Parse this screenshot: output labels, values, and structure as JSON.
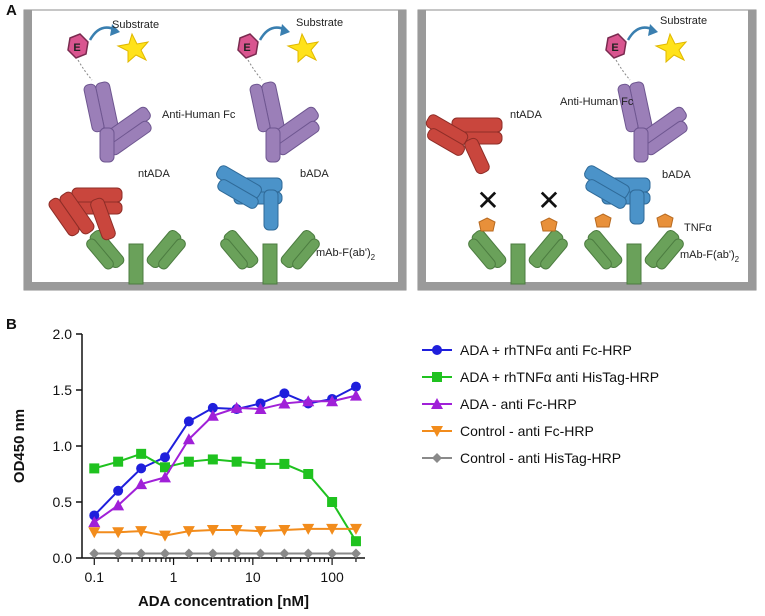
{
  "panels": {
    "a_letter": "A",
    "b_letter": "B"
  },
  "diagram": {
    "left": {
      "substrate_1": "Substrate",
      "substrate_2": "Substrate",
      "enzyme_1": "E",
      "enzyme_2": "E",
      "anti_human_fc": "Anti-Human Fc",
      "ntada": "ntADA",
      "bada": "bADA",
      "mab": "mAb-F(ab')",
      "mab_sub": "2"
    },
    "right": {
      "substrate": "Substrate",
      "enzyme": "E",
      "anti_human_fc": "Anti-Human Fc",
      "ntada": "ntADA",
      "bada": "bADA",
      "tnf": "TNFα",
      "mab": "mAb-F(ab')",
      "mab_sub": "2",
      "block_1": "✕",
      "block_2": "✕"
    },
    "colors": {
      "purple": "#9b7fb8",
      "red": "#c9463d",
      "blue": "#4b93c9",
      "green": "#6aa15a",
      "enzyme": "#d9558f",
      "star": "#ffe21a",
      "tnf": "#e8903a",
      "frame": "#8e8e8e"
    }
  },
  "chart_data": {
    "type": "line",
    "xlabel": "ADA concentration [nM]",
    "ylabel": "OD450 nm",
    "xscale": "log",
    "xlim": [
      0.07,
      260
    ],
    "ylim": [
      0,
      2.0
    ],
    "yticks": [
      "0.0",
      "0.5",
      "1.0",
      "1.5",
      "2.0"
    ],
    "xticks": [
      {
        "value": 0.1,
        "label": "0.1"
      },
      {
        "value": 1,
        "label": "1"
      },
      {
        "value": 10,
        "label": "10"
      },
      {
        "value": 100,
        "label": "100"
      }
    ],
    "legend_position": "right",
    "x": [
      0.1,
      0.2,
      0.39,
      0.78,
      1.56,
      3.13,
      6.25,
      12.5,
      25,
      50,
      100,
      200
    ],
    "series": [
      {
        "name": "ADA + rhTNFα anti Fc-HRP",
        "color": "#1f1fdc",
        "marker": "circle",
        "values": [
          0.38,
          0.6,
          0.8,
          0.9,
          1.22,
          1.34,
          1.33,
          1.38,
          1.47,
          1.38,
          1.42,
          1.53
        ]
      },
      {
        "name": "ADA + rhTNFα anti HisTag-HRP",
        "color": "#1fc21f",
        "marker": "square",
        "values": [
          0.8,
          0.86,
          0.93,
          0.81,
          0.86,
          0.88,
          0.86,
          0.84,
          0.84,
          0.75,
          0.5,
          0.15
        ]
      },
      {
        "name": "ADA - anti Fc-HRP",
        "color": "#a020d8",
        "marker": "triangle-up",
        "values": [
          0.32,
          0.47,
          0.66,
          0.72,
          1.06,
          1.27,
          1.34,
          1.33,
          1.38,
          1.4,
          1.4,
          1.45
        ]
      },
      {
        "name": "Control - anti Fc-HRP",
        "color": "#f28c1c",
        "marker": "triangle-down",
        "values": [
          0.23,
          0.23,
          0.24,
          0.2,
          0.24,
          0.25,
          0.25,
          0.24,
          0.25,
          0.26,
          0.26,
          0.26
        ]
      },
      {
        "name": "Control - anti HisTag-HRP",
        "color": "#8a8a8a",
        "marker": "diamond",
        "values": [
          0.04,
          0.04,
          0.04,
          0.04,
          0.04,
          0.04,
          0.04,
          0.04,
          0.04,
          0.04,
          0.04,
          0.04
        ]
      }
    ]
  }
}
